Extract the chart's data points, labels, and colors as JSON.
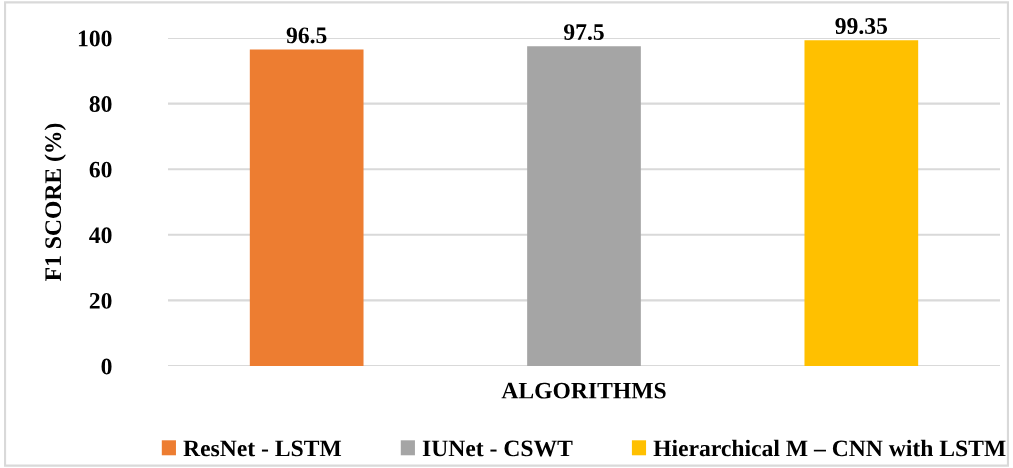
{
  "chart_data": {
    "type": "bar",
    "xlabel": "ALGORITHMS",
    "ylabel": "F1 SCORE (%)",
    "categories": [
      null,
      null,
      null
    ],
    "series": [
      {
        "name": "ResNet - LSTM",
        "color": "#ed7d31",
        "values": [
          96.5,
          null,
          null
        ]
      },
      {
        "name": "IUNet - CSWT",
        "color": "#a5a5a5",
        "values": [
          null,
          97.5,
          null
        ]
      },
      {
        "name": "Hierarchical M – CNN with LSTM",
        "color": "#ffc000",
        "values": [
          null,
          null,
          99.35
        ]
      }
    ],
    "ylim": [
      0,
      100
    ],
    "yticks": [
      0,
      20,
      40,
      60,
      80,
      100
    ],
    "grid": "y",
    "legend": "bottom",
    "data_labels": true
  }
}
